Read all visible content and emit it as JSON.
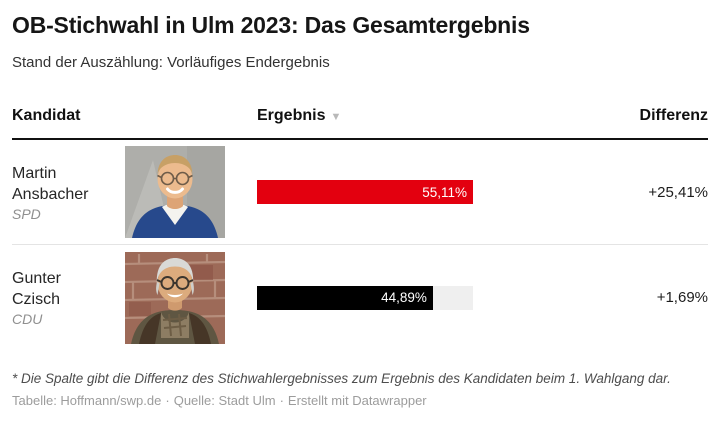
{
  "header": {
    "title": "OB-Stichwahl in Ulm 2023: Das Gesamtergebnis",
    "subtitle": "Stand der Auszählung: Vorläufiges Endergebnis"
  },
  "table": {
    "columns": {
      "kandidat": "Kandidat",
      "ergebnis": "Ergebnis",
      "differenz": "Differenz"
    },
    "sort_icon": "▼",
    "bar_track_color": "#efefef",
    "rows": [
      {
        "name_line1": "Martin",
        "name_line2": "Ansbacher",
        "party": "SPD",
        "result_value": 55.11,
        "result_label": "55,11%",
        "bar_color": "#e3000f",
        "diff_label": "+25,41%"
      },
      {
        "name_line1": "Gunter",
        "name_line2": "Czisch",
        "party": "CDU",
        "result_value": 44.89,
        "result_label": "44,89%",
        "bar_color": "#000000",
        "diff_label": "+1,69%"
      }
    ]
  },
  "footnote": "* Die Spalte gibt die Differenz des Stichwahlergebnisses zum Ergebnis des Kandidaten beim 1. Wahlgang dar.",
  "footer": {
    "credit": "Tabelle: Hoffmann/swp.de",
    "source": "Quelle: Stadt Ulm",
    "tool": "Erstellt mit Datawrapper",
    "separator": "·"
  },
  "chart_data": {
    "type": "bar",
    "orientation": "horizontal",
    "title": "OB-Stichwahl in Ulm 2023: Das Gesamtergebnis",
    "subtitle": "Stand der Auszählung: Vorläufiges Endergebnis",
    "categories": [
      "Martin Ansbacher (SPD)",
      "Gunter Czisch (CDU)"
    ],
    "series": [
      {
        "name": "Ergebnis",
        "values": [
          55.11,
          44.89
        ],
        "labels": [
          "55,11%",
          "44,89%"
        ],
        "colors": [
          "#e3000f",
          "#000000"
        ]
      },
      {
        "name": "Differenz",
        "values": [
          25.41,
          1.69
        ],
        "labels": [
          "+25,41%",
          "+1,69%"
        ]
      }
    ],
    "xlim": [
      0,
      55.11
    ],
    "sort": "Ergebnis absteigend",
    "legend_position": "none",
    "grid": false
  }
}
